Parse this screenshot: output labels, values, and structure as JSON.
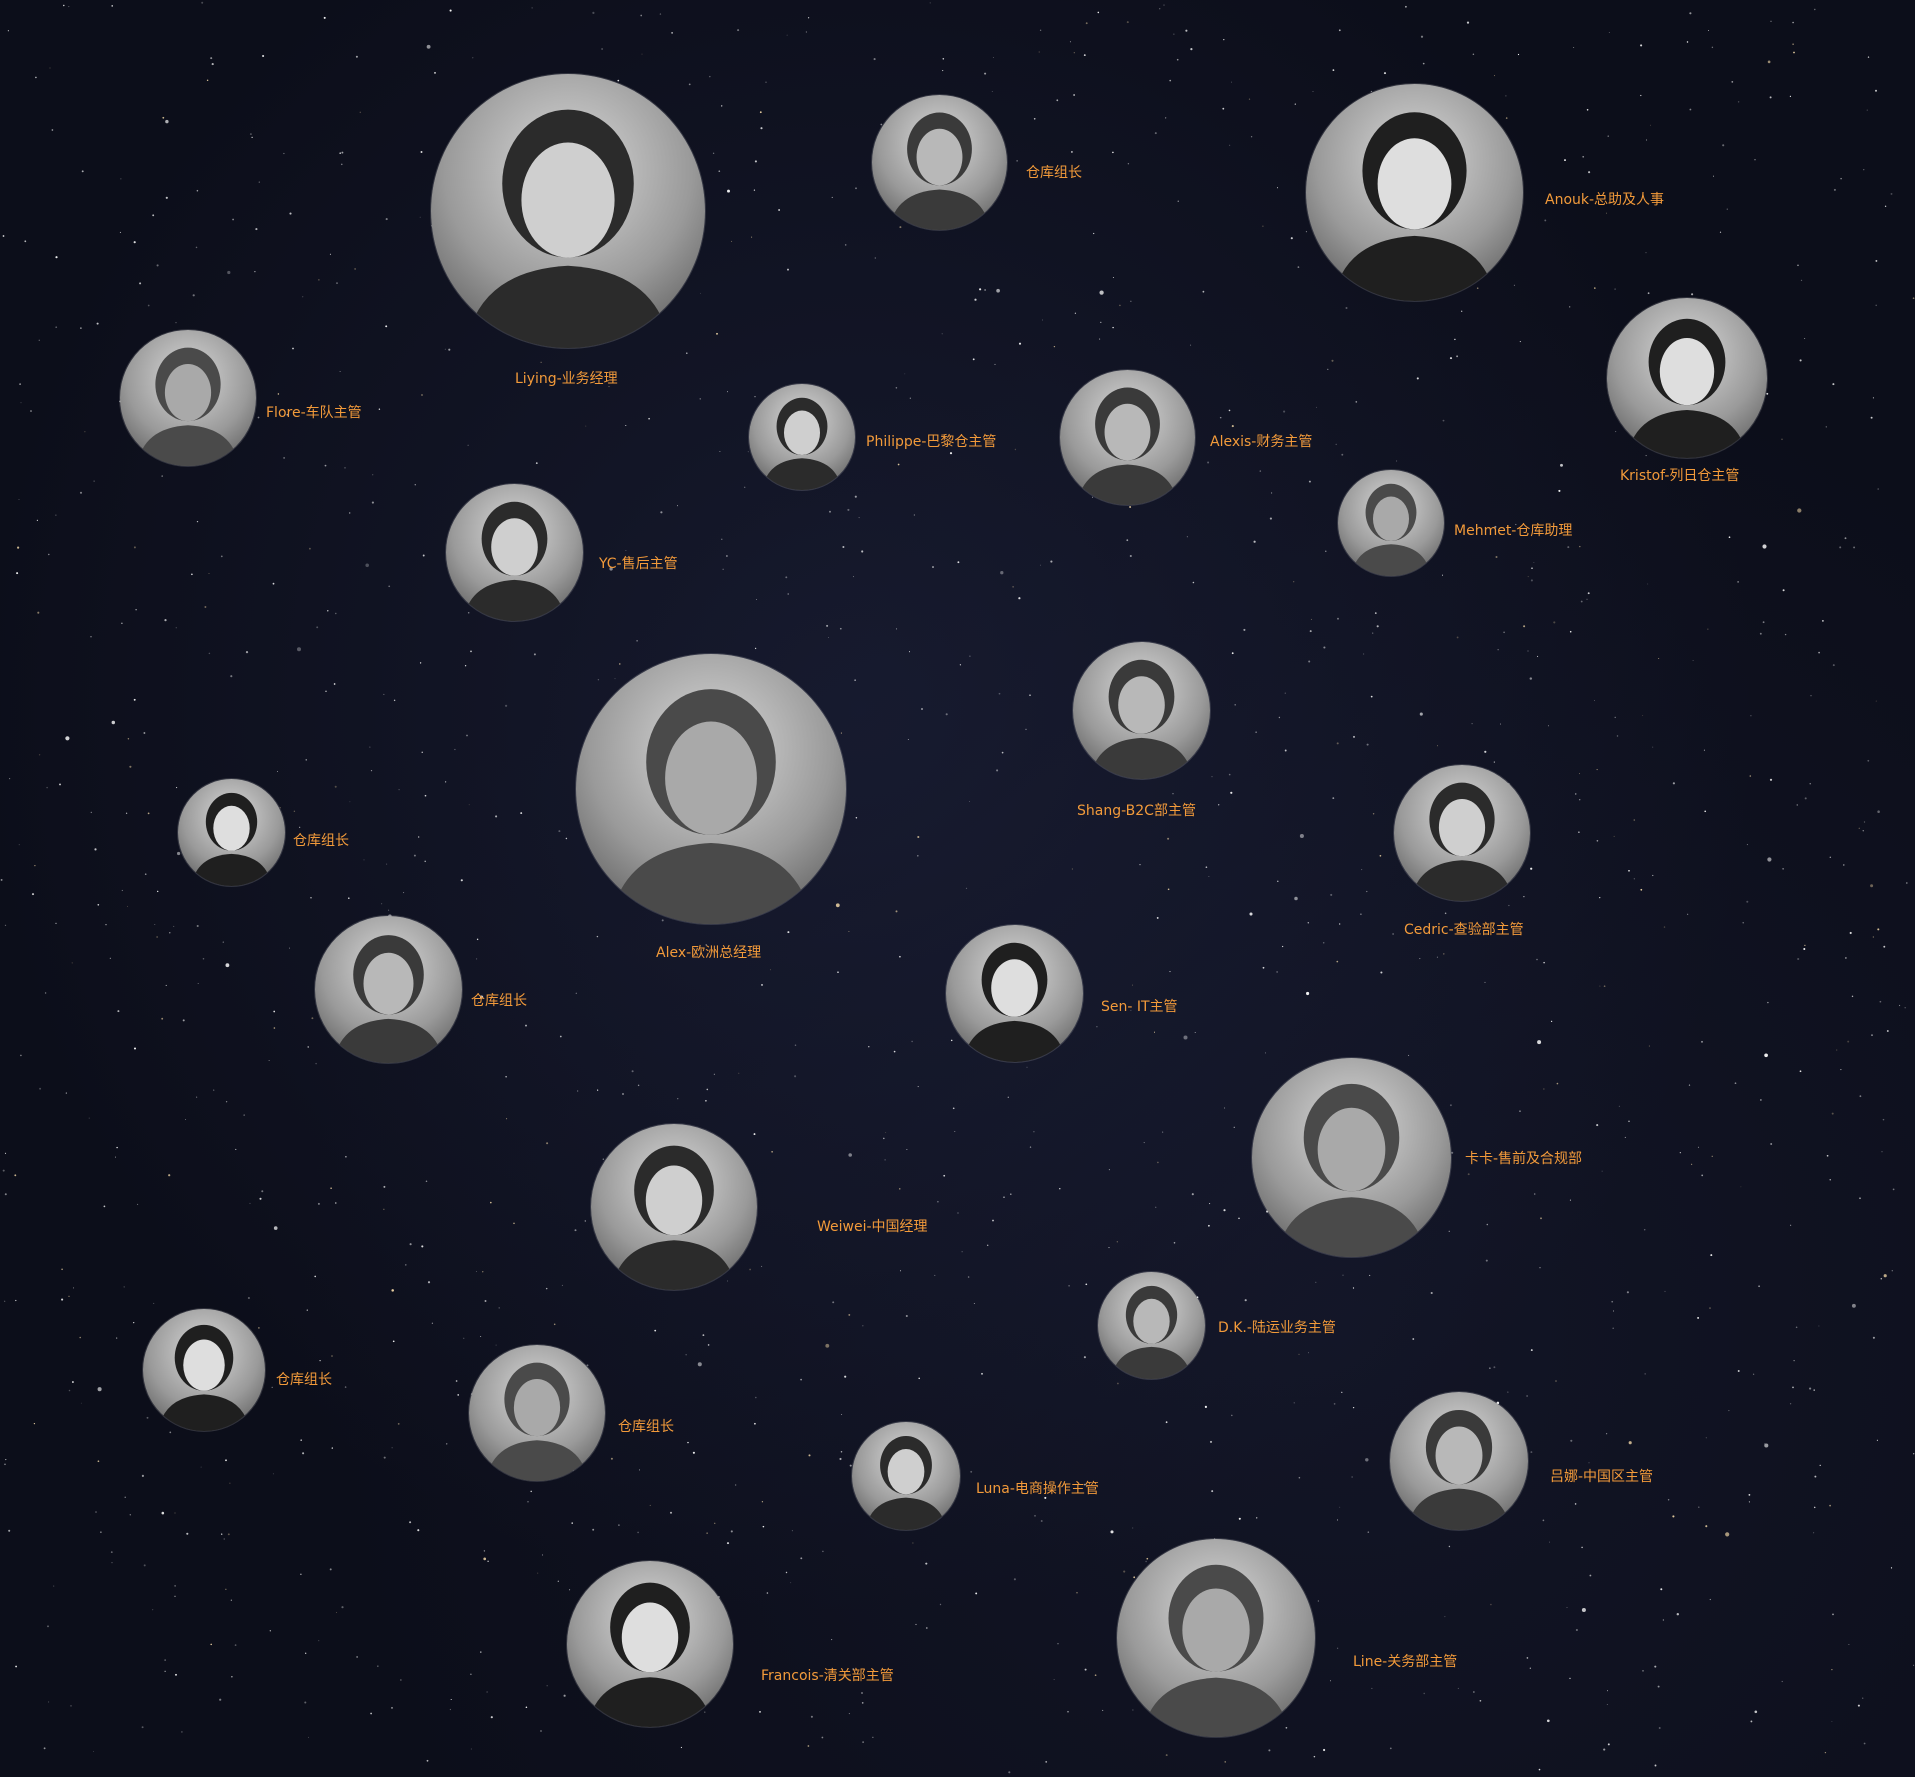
{
  "team": [
    {
      "label": "Liying-业务经理"
    },
    {
      "label": "仓库组长"
    },
    {
      "label": "Anouk-总助及人事"
    },
    {
      "label": "Flore-车队主管"
    },
    {
      "label": "Philippe-巴黎仓主管"
    },
    {
      "label": "Alexis-财务主管"
    },
    {
      "label": "Kristof-列日仓主管"
    },
    {
      "label": "Mehmet-仓库助理"
    },
    {
      "label": "YC-售后主管"
    },
    {
      "label": "Shang-B2C部主管"
    },
    {
      "label": "仓库组长"
    },
    {
      "label": "Alex-欧洲总经理"
    },
    {
      "label": "Cedric-查验部主管"
    },
    {
      "label": "仓库组长"
    },
    {
      "label": "Sen- IT主管"
    },
    {
      "label": "卡卡-售前及合规部"
    },
    {
      "label": "Weiwei-中国经理"
    },
    {
      "label": "D.K.-陆运业务主管"
    },
    {
      "label": "仓库组长"
    },
    {
      "label": "仓库组长"
    },
    {
      "label": "Luna-电商操作主管"
    },
    {
      "label": "吕娜-中国区主管"
    },
    {
      "label": "Francois-清关部主管"
    },
    {
      "label": "Line-关务部主管"
    }
  ]
}
